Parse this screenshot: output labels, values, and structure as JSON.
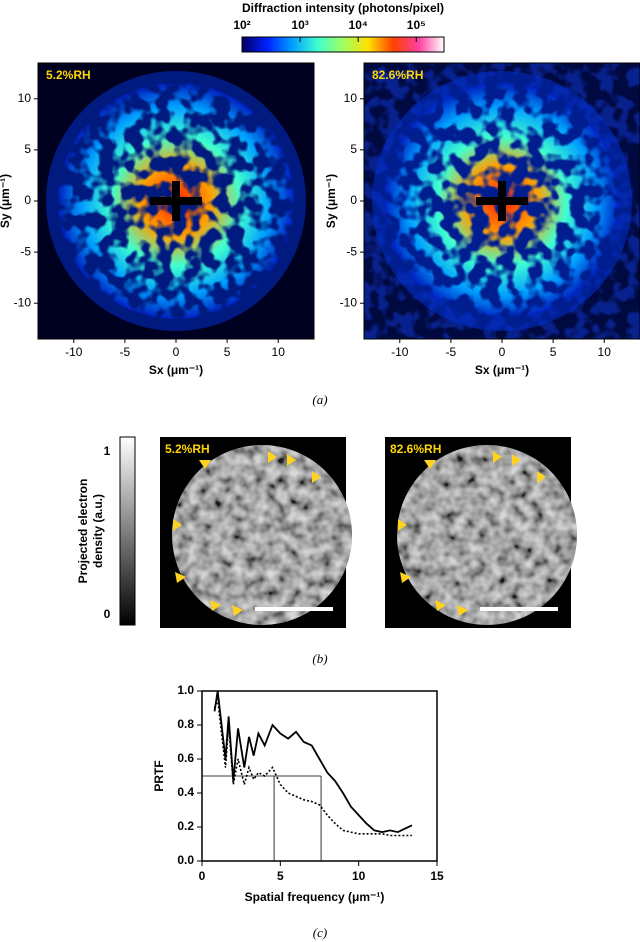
{
  "chart_data": [
    {
      "type": "heatmap",
      "panel_label": "(a)",
      "colorbar": {
        "title": "Diffraction intensity (photons/pixel)",
        "log": true,
        "clim": [
          100,
          300000
        ],
        "ticks": [
          {
            "value": 100,
            "label": "10²"
          },
          {
            "value": 1000,
            "label": "10³"
          },
          {
            "value": 10000,
            "label": "10⁴"
          },
          {
            "value": 100000,
            "label": "10⁵"
          }
        ],
        "colormap": [
          "#000060",
          "#0020ff",
          "#00a0ff",
          "#40ffd0",
          "#a0ff60",
          "#ffe000",
          "#ff4000",
          "#ff40a0",
          "#ffffff"
        ]
      },
      "panels": [
        {
          "label": "5.2%RH",
          "xlabel": "Sx (μm⁻¹)",
          "ylabel": "Sy (μm⁻¹)"
        },
        {
          "label": "82.6%RH",
          "xlabel": "Sx (μm⁻¹)",
          "ylabel": "Sy (μm⁻¹)"
        }
      ],
      "xlim": [
        -13.5,
        13.5
      ],
      "ylim": [
        -13.5,
        13.5
      ],
      "xticks": [
        -10,
        -5,
        0,
        5,
        10
      ],
      "yticks": [
        -10,
        -5,
        0,
        5,
        10
      ]
    },
    {
      "type": "image",
      "panel_label": "(b)",
      "colorbar": {
        "title_lines": [
          "Projected electron",
          "density (a.u.)"
        ],
        "clim": [
          0,
          1
        ],
        "ticks": [
          0,
          1
        ]
      },
      "panels": [
        {
          "label": "5.2%RH"
        },
        {
          "label": "82.6%RH"
        }
      ]
    },
    {
      "type": "line",
      "panel_label": "(c)",
      "xlabel": "Spatial frequency (μm⁻¹)",
      "ylabel": "PRTF",
      "xlim": [
        0,
        15
      ],
      "ylim": [
        0,
        1
      ],
      "xticks": [
        0,
        5,
        10,
        15
      ],
      "yticks": [
        {
          "value": 0,
          "label": "0.0"
        },
        {
          "value": 0.2,
          "label": "0.2"
        },
        {
          "value": 0.4,
          "label": "0.4"
        },
        {
          "value": 0.6,
          "label": "0.6"
        },
        {
          "value": 0.8,
          "label": "0.8"
        },
        {
          "value": 1,
          "label": "1.0"
        }
      ],
      "threshold": 0.5,
      "cutoffs": [
        4.6,
        7.6
      ],
      "x": [
        0.8,
        1.0,
        1.5,
        1.7,
        2.0,
        2.3,
        2.7,
        3.0,
        3.3,
        3.6,
        4.0,
        4.5,
        5.0,
        5.5,
        6.0,
        6.5,
        7.0,
        7.5,
        8.0,
        8.5,
        9.0,
        9.5,
        10.0,
        10.5,
        11.0,
        11.5,
        12.0,
        12.5,
        13.4
      ],
      "series": [
        {
          "style": "solid",
          "color": "#000000",
          "values": [
            0.88,
            1.0,
            0.6,
            0.85,
            0.47,
            0.78,
            0.55,
            0.73,
            0.62,
            0.75,
            0.68,
            0.8,
            0.75,
            0.72,
            0.76,
            0.7,
            0.68,
            0.6,
            0.52,
            0.47,
            0.4,
            0.32,
            0.27,
            0.22,
            0.18,
            0.17,
            0.18,
            0.17,
            0.21
          ]
        },
        {
          "style": "dotted",
          "color": "#000000",
          "values": [
            0.9,
            0.95,
            0.55,
            0.8,
            0.45,
            0.6,
            0.45,
            0.55,
            0.48,
            0.52,
            0.5,
            0.55,
            0.45,
            0.4,
            0.38,
            0.36,
            0.35,
            0.33,
            0.27,
            0.22,
            0.18,
            0.17,
            0.16,
            0.16,
            0.16,
            0.16,
            0.15,
            0.15,
            0.15
          ]
        }
      ]
    }
  ]
}
